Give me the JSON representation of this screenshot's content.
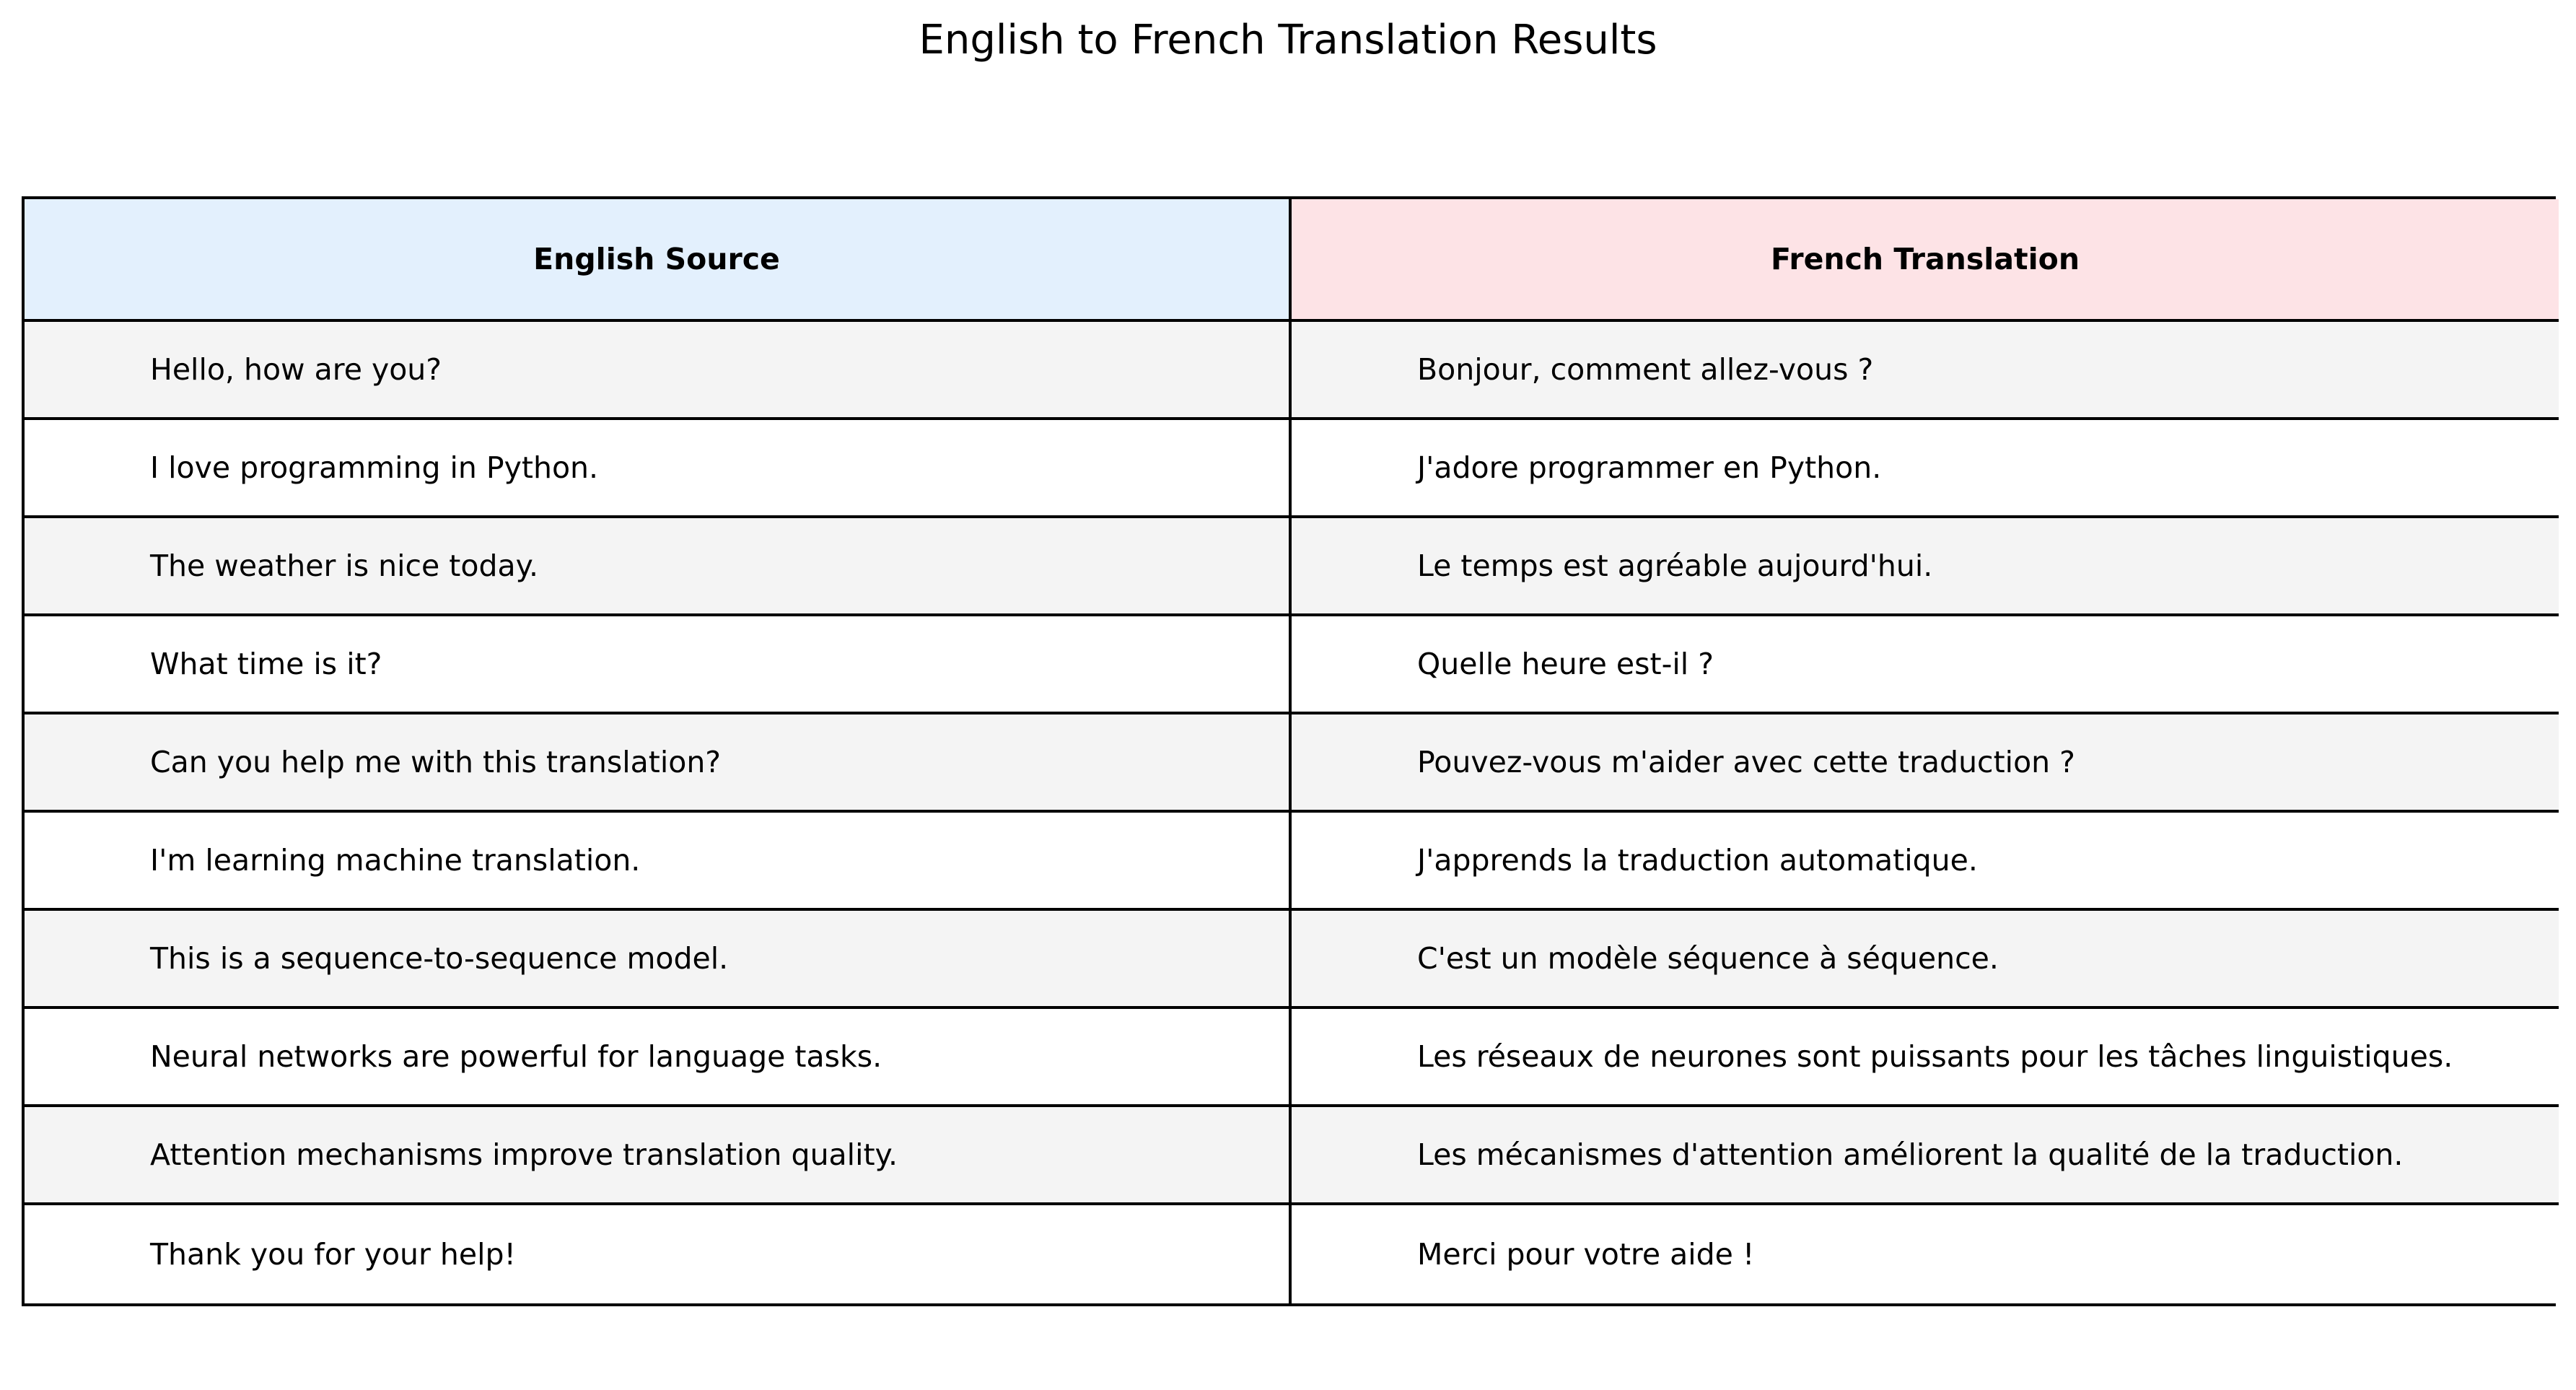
{
  "title": "English to French Translation Results",
  "colors": {
    "header_english_bg": "#e3f0fd",
    "header_french_bg": "#fde3e6",
    "row_odd_bg": "#f4f4f4",
    "row_even_bg": "#ffffff",
    "border": "#000000"
  },
  "chart_data": {
    "type": "table",
    "title": "English to French Translation Results",
    "columns": [
      "English Source",
      "French Translation"
    ],
    "rows": [
      [
        "Hello, how are you?",
        "Bonjour, comment allez-vous ?"
      ],
      [
        "I love programming in Python.",
        "J'adore programmer en Python."
      ],
      [
        "The weather is nice today.",
        "Le temps est agréable aujourd'hui."
      ],
      [
        "What time is it?",
        "Quelle heure est-il ?"
      ],
      [
        "Can you help me with this translation?",
        "Pouvez-vous m'aider avec cette traduction ?"
      ],
      [
        "I'm learning machine translation.",
        "J'apprends la traduction automatique."
      ],
      [
        "This is a sequence-to-sequence model.",
        "C'est un modèle séquence à séquence."
      ],
      [
        "Neural networks are powerful for language tasks.",
        "Les réseaux de neurones sont puissants pour les tâches linguistiques."
      ],
      [
        "Attention mechanisms improve translation quality.",
        "Les mécanismes d'attention améliorent la qualité de la traduction."
      ],
      [
        "Thank you for your help!",
        "Merci pour votre aide !"
      ]
    ]
  }
}
